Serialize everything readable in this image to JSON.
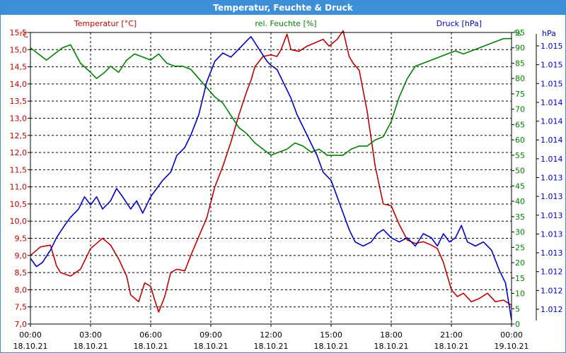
{
  "window": {
    "title": "Temperatur, Feuchte & Druck"
  },
  "chart_data": {
    "type": "line",
    "title": "Temperatur, Feuchte & Druck",
    "grid": true,
    "x_range": [
      0,
      24
    ],
    "x_tick_labels": [
      {
        "time": "00:00",
        "date": "18.10.21"
      },
      {
        "time": "03:00",
        "date": "18.10.21"
      },
      {
        "time": "06:00",
        "date": "18.10.21"
      },
      {
        "time": "09:00",
        "date": "18.10.21"
      },
      {
        "time": "12:00",
        "date": "18.10.21"
      },
      {
        "time": "15:00",
        "date": "18.10.21"
      },
      {
        "time": "18:00",
        "date": "18.10.21"
      },
      {
        "time": "21:00",
        "date": "18.10.21"
      },
      {
        "time": "00:00",
        "date": "19.10.21"
      }
    ],
    "axes": {
      "temperature": {
        "unit": "°C",
        "range": [
          7.0,
          15.5
        ],
        "ticks": [
          "7,0",
          "7,5",
          "8,0",
          "8,5",
          "9,0",
          "9,5",
          "10,0",
          "10,5",
          "11,0",
          "11,5",
          "12,0",
          "12,5",
          "13,0",
          "13,5",
          "14,0",
          "14,5",
          "15,0",
          "15,5"
        ],
        "color": "#c00000"
      },
      "humidity": {
        "unit": "%",
        "range": [
          0,
          95
        ],
        "ticks": [
          "0",
          "5",
          "10",
          "15",
          "20",
          "25",
          "30",
          "35",
          "40",
          "45",
          "50",
          "55",
          "60",
          "65",
          "70",
          "75",
          "80",
          "85",
          "90",
          "95"
        ],
        "color": "#008000"
      },
      "pressure": {
        "unit": "hPa",
        "range": [
          1011.75,
          1015.3
        ],
        "ticks": [
          "1.012",
          "1.012",
          "1.012",
          "1.013",
          "1.013",
          "1.013",
          "1.013",
          "1.013",
          "1.014",
          "1.014",
          "1.014",
          "1.014",
          "1.015",
          "1.015",
          "1.015"
        ],
        "color": "#0000c0"
      }
    },
    "series": [
      {
        "name": "Temperatur [°C]",
        "axis": "temperature",
        "color": "#c00000",
        "x": [
          0,
          0.5,
          1,
          1.3,
          1.5,
          2,
          2.5,
          3,
          3.3,
          3.6,
          4,
          4.4,
          4.8,
          5,
          5.4,
          5.7,
          6,
          6.2,
          6.4,
          6.7,
          7,
          7.3,
          7.7,
          8,
          8.4,
          8.8,
          9.2,
          9.6,
          10,
          10.4,
          10.8,
          11,
          11.2,
          11.6,
          12,
          12.3,
          12.5,
          12.8,
          13,
          13.4,
          13.8,
          14.2,
          14.6,
          14.9,
          15.3,
          15.6,
          15.9,
          16.1,
          16.4,
          16.8,
          17.2,
          17.6,
          18,
          18.4,
          18.8,
          19.2,
          19.6,
          20,
          20.3,
          20.6,
          20.8,
          21,
          21.3,
          21.6,
          22,
          22.4,
          22.8,
          23.2,
          23.6,
          24
        ],
        "y": [
          9.0,
          9.25,
          9.3,
          8.7,
          8.5,
          8.4,
          8.6,
          9.2,
          9.35,
          9.5,
          9.3,
          8.9,
          8.4,
          7.85,
          7.65,
          8.2,
          8.1,
          7.7,
          7.35,
          7.8,
          8.5,
          8.6,
          8.55,
          9.0,
          9.55,
          10.1,
          11.0,
          11.6,
          12.3,
          13.1,
          13.8,
          14.1,
          14.5,
          14.8,
          14.85,
          14.8,
          15.0,
          15.45,
          15.0,
          14.95,
          15.1,
          15.2,
          15.3,
          15.1,
          15.3,
          15.55,
          14.8,
          14.6,
          14.4,
          13.2,
          11.6,
          10.5,
          10.45,
          9.9,
          9.45,
          9.35,
          9.4,
          9.3,
          9.2,
          8.8,
          8.4,
          8.0,
          7.8,
          7.9,
          7.65,
          7.75,
          7.9,
          7.65,
          7.7,
          7.55
        ]
      },
      {
        "name": "rel. Feuchte [%]",
        "axis": "humidity",
        "color": "#008000",
        "x": [
          0,
          0.4,
          0.8,
          1.2,
          1.6,
          2,
          2.5,
          3,
          3.3,
          3.7,
          4,
          4.4,
          4.8,
          5.2,
          5.6,
          6,
          6.4,
          6.8,
          7.2,
          7.6,
          8,
          8.4,
          8.8,
          9.2,
          9.6,
          10,
          10.4,
          10.8,
          11.2,
          11.6,
          12,
          12.4,
          12.8,
          13.2,
          13.6,
          14,
          14.4,
          14.8,
          15.2,
          15.6,
          16,
          16.4,
          16.8,
          17.2,
          17.6,
          18,
          18.4,
          18.8,
          19.2,
          19.6,
          20,
          20.4,
          20.8,
          21.2,
          21.6,
          22,
          22.4,
          22.8,
          23.2,
          23.6,
          24
        ],
        "y": [
          90,
          88,
          86,
          88,
          90,
          91,
          85,
          82,
          80,
          82,
          84,
          82,
          86,
          88,
          87,
          86,
          88,
          85,
          84,
          84,
          83,
          80,
          77,
          74,
          72,
          68,
          64,
          62,
          59,
          57,
          55,
          56,
          57,
          59,
          58,
          56,
          57,
          55,
          55,
          55,
          57,
          58,
          58,
          60,
          61,
          66,
          74,
          80,
          84,
          85,
          86,
          87,
          88,
          89,
          88,
          89,
          90,
          91,
          92,
          93,
          93
        ]
      },
      {
        "name": "Druck [hPa]",
        "axis": "pressure",
        "color": "#0000c0",
        "x": [
          0,
          0.3,
          0.6,
          1,
          1.3,
          1.7,
          2,
          2.4,
          2.7,
          3,
          3.3,
          3.6,
          4,
          4.3,
          4.6,
          5,
          5.3,
          5.6,
          6,
          6.3,
          6.6,
          7,
          7.3,
          7.7,
          8,
          8.4,
          8.8,
          9.2,
          9.6,
          10,
          10.4,
          10.8,
          11,
          11.4,
          11.8,
          12,
          12.3,
          12.6,
          13,
          13.3,
          13.7,
          14,
          14.3,
          14.6,
          15,
          15.3,
          15.6,
          15.9,
          16.2,
          16.6,
          17,
          17.3,
          17.6,
          18,
          18.4,
          18.8,
          19.2,
          19.6,
          20,
          20.3,
          20.6,
          20.9,
          21.2,
          21.5,
          21.8,
          22.2,
          22.6,
          23,
          23.4,
          23.7,
          24
        ],
        "y": [
          1012.55,
          1012.45,
          1012.5,
          1012.65,
          1012.8,
          1012.95,
          1013.05,
          1013.15,
          1013.3,
          1013.2,
          1013.3,
          1013.15,
          1013.25,
          1013.4,
          1013.3,
          1013.15,
          1013.25,
          1013.1,
          1013.3,
          1013.4,
          1013.5,
          1013.6,
          1013.8,
          1013.9,
          1014.05,
          1014.3,
          1014.7,
          1014.95,
          1015.05,
          1015.0,
          1015.1,
          1015.2,
          1015.25,
          1015.1,
          1014.95,
          1014.9,
          1014.85,
          1014.7,
          1014.5,
          1014.3,
          1014.1,
          1013.95,
          1013.8,
          1013.6,
          1013.5,
          1013.3,
          1013.1,
          1012.9,
          1012.75,
          1012.7,
          1012.75,
          1012.85,
          1012.9,
          1012.8,
          1012.75,
          1012.8,
          1012.7,
          1012.85,
          1012.8,
          1012.7,
          1012.85,
          1012.75,
          1012.8,
          1012.95,
          1012.75,
          1012.7,
          1012.75,
          1012.65,
          1012.4,
          1012.25,
          1011.8
        ]
      }
    ]
  }
}
